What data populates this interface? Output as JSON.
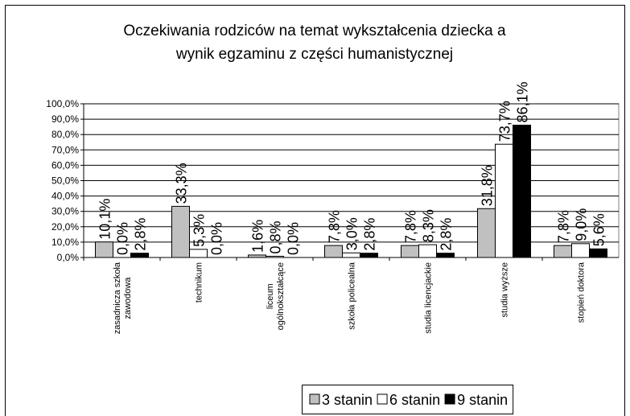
{
  "chart_data": {
    "type": "bar",
    "title": "Oczekiwania rodziców na temat wykształcenia dziecka a wynik egzaminu z części humanistycznej",
    "categories": [
      "zasadnicza szkoła zawodowa",
      "technikum",
      "liceum ogólnokształcące",
      "szkoła policealna",
      "studia licencjackie",
      "studia wyższe",
      "stopień doktora"
    ],
    "series": [
      {
        "name": "3 stanin",
        "color": "#c0c0c0",
        "values": [
          10.1,
          33.3,
          1.6,
          7.8,
          7.8,
          31.8,
          7.8
        ],
        "value_labels": [
          "10,1%",
          "33,3%",
          "1,6%",
          "7,8%",
          "7,8%",
          "31,8%",
          "7,8%"
        ]
      },
      {
        "name": "6 stanin",
        "color": "#ffffff",
        "values": [
          0.0,
          5.3,
          0.8,
          3.0,
          8.3,
          73.7,
          9.0
        ],
        "value_labels": [
          "0,0%",
          "5,3%",
          "0,8%",
          "3,0%",
          "8,3%",
          "73,7%",
          "9,0%"
        ]
      },
      {
        "name": "9 stanin",
        "color": "#000000",
        "values": [
          2.8,
          0.0,
          0.0,
          2.8,
          2.8,
          86.1,
          5.6
        ],
        "value_labels": [
          "2,8%",
          "0,0%",
          "0,0%",
          "2,8%",
          "2,8%",
          "86,1%",
          "5,6%"
        ]
      }
    ],
    "ylim": [
      0,
      100
    ],
    "yticks": [
      {
        "value": 0,
        "label": "0,0%"
      },
      {
        "value": 10,
        "label": "10,0%"
      },
      {
        "value": 20,
        "label": "20,0%"
      },
      {
        "value": 30,
        "label": "30,0%"
      },
      {
        "value": 40,
        "label": "40,0%"
      },
      {
        "value": 50,
        "label": "50,0%"
      },
      {
        "value": 60,
        "label": "60,0%"
      },
      {
        "value": 70,
        "label": "70,0%"
      },
      {
        "value": 80,
        "label": "80,0%"
      },
      {
        "value": 90,
        "label": "90,0%"
      },
      {
        "value": 100,
        "label": "100,0%"
      }
    ],
    "grid": true,
    "legend": "bottom"
  }
}
